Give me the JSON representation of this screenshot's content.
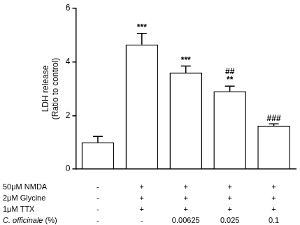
{
  "chart_data": {
    "type": "bar",
    "values": [
      1,
      4.65,
      3.6,
      2.9,
      1.62
    ],
    "errors": [
      0.22,
      0.42,
      0.25,
      0.2,
      0.07
    ],
    "color": "#ffffff",
    "y_label": [
      "LDH release",
      "(Ratio to control)"
    ],
    "ylim": [
      0,
      6
    ],
    "yticks": [
      0,
      2,
      4,
      6
    ],
    "grid": false,
    "tick_labels": "y",
    "annotations": [
      null,
      [
        "***"
      ],
      [
        "***"
      ],
      [
        "##",
        "**"
      ],
      [
        "###"
      ]
    ],
    "conditions": [
      {
        "label": "50μM NMDA",
        "marks": [
          "-",
          "+",
          "+",
          "+",
          "+"
        ]
      },
      {
        "label": "2μM Glycine",
        "marks": [
          "-",
          "+",
          "+",
          "+",
          "+"
        ]
      },
      {
        "label": "1μM TTX",
        "marks": [
          "-",
          "+",
          "+",
          "+",
          "+"
        ]
      },
      {
        "label": "C. officinale (%)",
        "marks": [
          "-",
          "-",
          "0.00625",
          "0.025",
          "0.1"
        ]
      }
    ]
  }
}
